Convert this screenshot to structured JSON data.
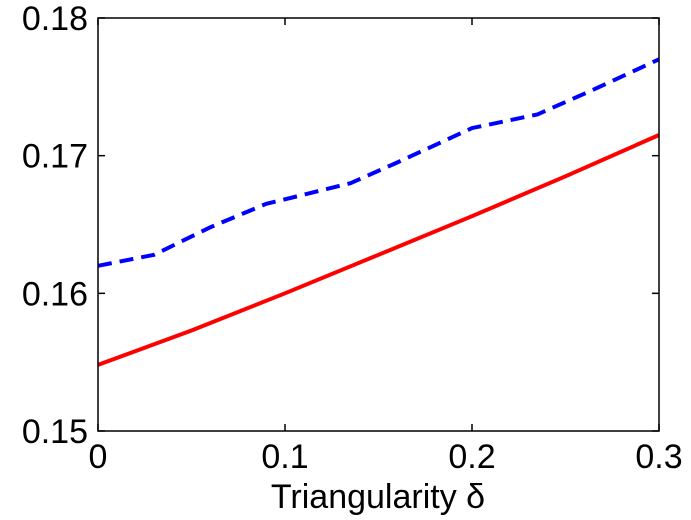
{
  "chart_data": {
    "type": "line",
    "xlabel": "Triangularity  δ",
    "ylabel": "",
    "xlim": [
      0,
      0.3
    ],
    "ylim": [
      0.15,
      0.18
    ],
    "x_ticks": [
      "0",
      "0.1",
      "0.2",
      "0.3"
    ],
    "y_ticks": [
      "0.15",
      "0.16",
      "0.17",
      "0.18"
    ],
    "grid": false,
    "legend": "none",
    "series": [
      {
        "color": "#0000ff",
        "style": "dashed",
        "points": [
          [
            0.0,
            0.162
          ],
          [
            0.03,
            0.1628
          ],
          [
            0.06,
            0.1648
          ],
          [
            0.09,
            0.1665
          ],
          [
            0.105,
            0.167
          ],
          [
            0.135,
            0.168
          ],
          [
            0.16,
            0.1695
          ],
          [
            0.2,
            0.172
          ],
          [
            0.235,
            0.173
          ],
          [
            0.265,
            0.1748
          ],
          [
            0.3,
            0.177
          ]
        ]
      },
      {
        "color": "#ff0000",
        "style": "solid",
        "points": [
          [
            0.0,
            0.1548
          ],
          [
            0.05,
            0.1573
          ],
          [
            0.1,
            0.16
          ],
          [
            0.15,
            0.1628
          ],
          [
            0.2,
            0.1656
          ],
          [
            0.25,
            0.1685
          ],
          [
            0.3,
            0.1715
          ]
        ]
      }
    ]
  }
}
